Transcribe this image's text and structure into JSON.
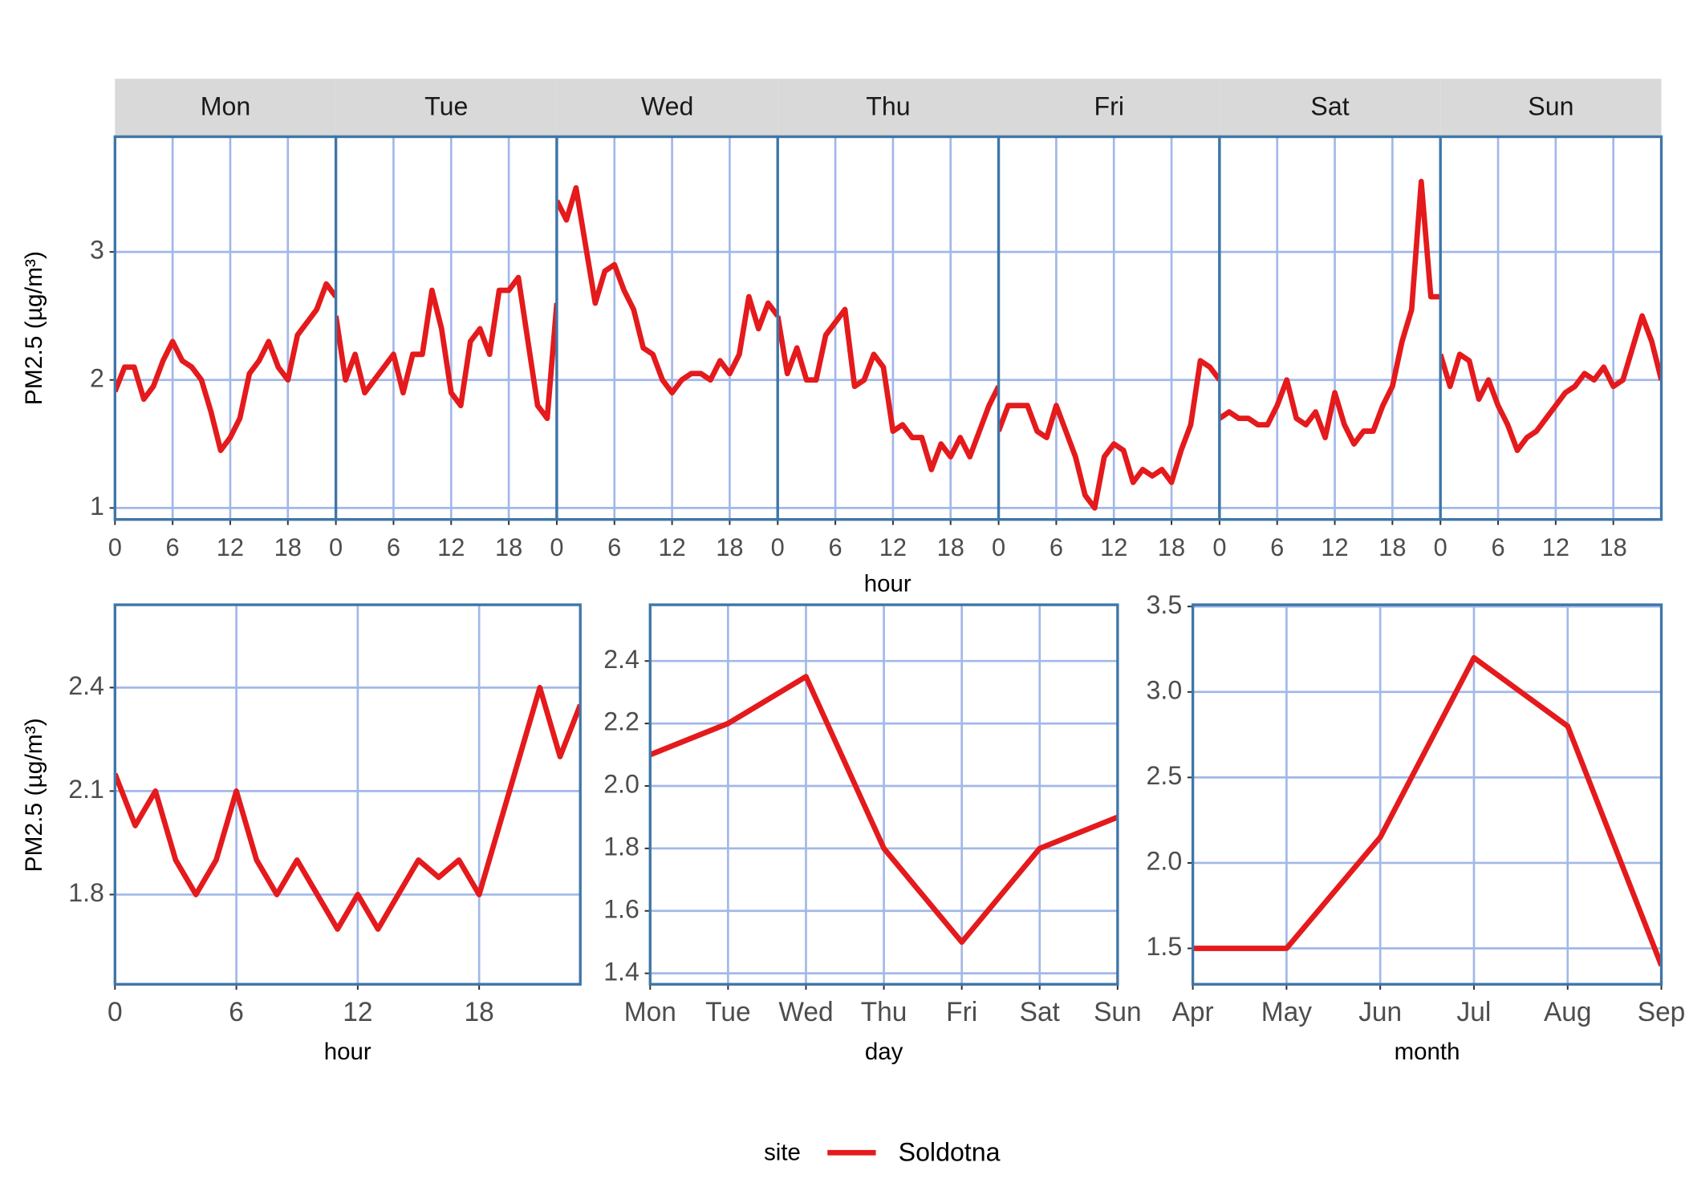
{
  "chart_data": [
    {
      "type": "line",
      "facets": [
        "Mon",
        "Tue",
        "Wed",
        "Thu",
        "Fri",
        "Sat",
        "Sun"
      ],
      "xlabel": "hour",
      "ylabel": "PM2.5 (µg/m³)",
      "legend_title": "site",
      "x": [
        0,
        1,
        2,
        3,
        4,
        5,
        6,
        7,
        8,
        9,
        10,
        11,
        12,
        13,
        14,
        15,
        16,
        17,
        18,
        19,
        20,
        21,
        22,
        23
      ],
      "xlim": [
        0,
        23
      ],
      "xticks": [
        0,
        6,
        12,
        18
      ],
      "ylim": [
        0.91,
        3.9
      ],
      "yticks": [
        1,
        2,
        3
      ],
      "grid": true,
      "series": [
        {
          "name": "Soldotna",
          "color": "#e41a1c",
          "values": [
            [
              1.91,
              2.1,
              2.1,
              1.85,
              1.95,
              2.15,
              2.3,
              2.15,
              2.1,
              2.0,
              1.75,
              1.45,
              1.55,
              1.7,
              2.05,
              2.15,
              2.3,
              2.1,
              2.0,
              2.35,
              2.45,
              2.55,
              2.75,
              2.65
            ],
            [
              2.5,
              2.0,
              2.2,
              1.9,
              2.0,
              2.1,
              2.2,
              1.9,
              2.2,
              2.2,
              2.7,
              2.4,
              1.9,
              1.8,
              2.3,
              2.4,
              2.2,
              2.7,
              2.7,
              2.8,
              2.3,
              1.8,
              1.7,
              2.6
            ],
            [
              3.4,
              3.25,
              3.5,
              3.05,
              2.6,
              2.85,
              2.9,
              2.7,
              2.55,
              2.25,
              2.2,
              2.0,
              1.9,
              2.0,
              2.05,
              2.05,
              2.0,
              2.15,
              2.05,
              2.2,
              2.65,
              2.4,
              2.6,
              2.5
            ],
            [
              2.5,
              2.05,
              2.25,
              2.0,
              2.0,
              2.35,
              2.45,
              2.55,
              1.95,
              2.0,
              2.2,
              2.1,
              1.6,
              1.65,
              1.55,
              1.55,
              1.3,
              1.5,
              1.4,
              1.55,
              1.4,
              1.6,
              1.8,
              1.95
            ],
            [
              1.6,
              1.8,
              1.8,
              1.8,
              1.6,
              1.55,
              1.8,
              1.6,
              1.4,
              1.1,
              1.0,
              1.4,
              1.5,
              1.45,
              1.2,
              1.3,
              1.25,
              1.3,
              1.2,
              1.45,
              1.65,
              2.15,
              2.1,
              2.0
            ],
            [
              1.7,
              1.75,
              1.7,
              1.7,
              1.65,
              1.65,
              1.8,
              2.0,
              1.7,
              1.65,
              1.75,
              1.55,
              1.9,
              1.65,
              1.5,
              1.6,
              1.6,
              1.8,
              1.95,
              2.3,
              2.55,
              3.55,
              2.65,
              2.65
            ],
            [
              2.2,
              1.95,
              2.2,
              2.15,
              1.85,
              2.0,
              1.8,
              1.65,
              1.45,
              1.55,
              1.6,
              1.7,
              1.8,
              1.9,
              1.95,
              2.05,
              2.0,
              2.1,
              1.95,
              2.0,
              2.25,
              2.5,
              2.3,
              2.0
            ]
          ]
        }
      ]
    },
    {
      "type": "line",
      "xlabel": "hour",
      "ylabel": "PM2.5 (µg/m³)",
      "x": [
        0,
        1,
        2,
        3,
        4,
        5,
        6,
        7,
        8,
        9,
        10,
        11,
        12,
        13,
        14,
        15,
        16,
        17,
        18,
        19,
        20,
        21,
        22,
        23
      ],
      "xlim": [
        0,
        23
      ],
      "xticks": [
        0,
        6,
        12,
        18
      ],
      "ylim": [
        1.54,
        2.64
      ],
      "yticks": [
        1.8,
        2.1,
        2.4
      ],
      "grid": true,
      "color": "#e41a1c",
      "values": [
        2.15,
        2.0,
        2.1,
        1.9,
        1.8,
        1.9,
        2.1,
        1.9,
        1.8,
        1.9,
        1.8,
        1.7,
        1.8,
        1.7,
        1.8,
        1.9,
        1.85,
        1.9,
        1.8,
        2.0,
        2.2,
        2.4,
        2.2,
        2.35
      ]
    },
    {
      "type": "line",
      "xlabel": "day",
      "categories": [
        "Mon",
        "Tue",
        "Wed",
        "Thu",
        "Fri",
        "Sat",
        "Sun"
      ],
      "ylim": [
        1.365,
        2.58
      ],
      "yticks": [
        1.4,
        1.6,
        1.8,
        {
          "value": 2,
          "label": "2.0"
        },
        2.2,
        2.4
      ],
      "grid": true,
      "color": "#e41a1c",
      "values": [
        2.1,
        2.2,
        2.35,
        1.8,
        1.5,
        1.8,
        1.9
      ]
    },
    {
      "type": "line",
      "xlabel": "month",
      "categories": [
        "Apr",
        "May",
        "Jun",
        "Jul",
        "Aug",
        "Sep"
      ],
      "ylim": [
        1.29,
        3.51
      ],
      "yticks": [
        1.5,
        {
          "value": 2,
          "label": "2.0"
        },
        2.5,
        {
          "value": 3,
          "label": "3.0"
        },
        3.5
      ],
      "grid": true,
      "color": "#e41a1c",
      "values": [
        1.5,
        1.5,
        2.15,
        3.2,
        2.8,
        1.4
      ]
    }
  ]
}
